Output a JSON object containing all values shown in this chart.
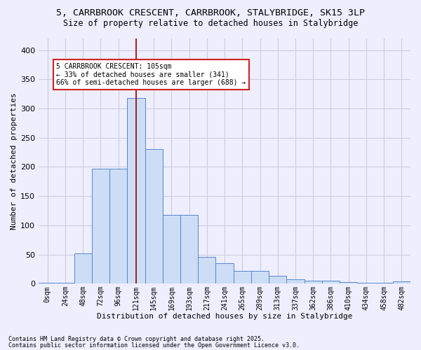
{
  "title1": "5, CARRBROOK CRESCENT, CARRBROOK, STALYBRIDGE, SK15 3LP",
  "title2": "Size of property relative to detached houses in Stalybridge",
  "xlabel": "Distribution of detached houses by size in Stalybridge",
  "ylabel": "Number of detached properties",
  "categories": [
    "0sqm",
    "24sqm",
    "48sqm",
    "72sqm",
    "96sqm",
    "121sqm",
    "145sqm",
    "169sqm",
    "193sqm",
    "217sqm",
    "241sqm",
    "265sqm",
    "289sqm",
    "313sqm",
    "337sqm",
    "362sqm",
    "386sqm",
    "410sqm",
    "434sqm",
    "458sqm",
    "482sqm"
  ],
  "values": [
    2,
    2,
    52,
    197,
    197,
    318,
    230,
    118,
    118,
    46,
    35,
    22,
    22,
    13,
    8,
    5,
    5,
    3,
    2,
    1,
    4
  ],
  "bar_color": "#ccddf5",
  "bar_edge_color": "#5588cc",
  "vline_x": 5.0,
  "vline_color": "#990000",
  "annotation_text": "5 CARRBROOK CRESCENT: 105sqm\n← 33% of detached houses are smaller (341)\n66% of semi-detached houses are larger (688) →",
  "annotation_box_color": "white",
  "annotation_box_edge": "#cc2222",
  "footer1": "Contains HM Land Registry data © Crown copyright and database right 2025.",
  "footer2": "Contains public sector information licensed under the Open Government Licence v3.0.",
  "bg_color": "#eeeeff",
  "grid_color": "#ccccdd",
  "ylim": [
    0,
    420
  ],
  "yticks": [
    0,
    50,
    100,
    150,
    200,
    250,
    300,
    350,
    400
  ]
}
